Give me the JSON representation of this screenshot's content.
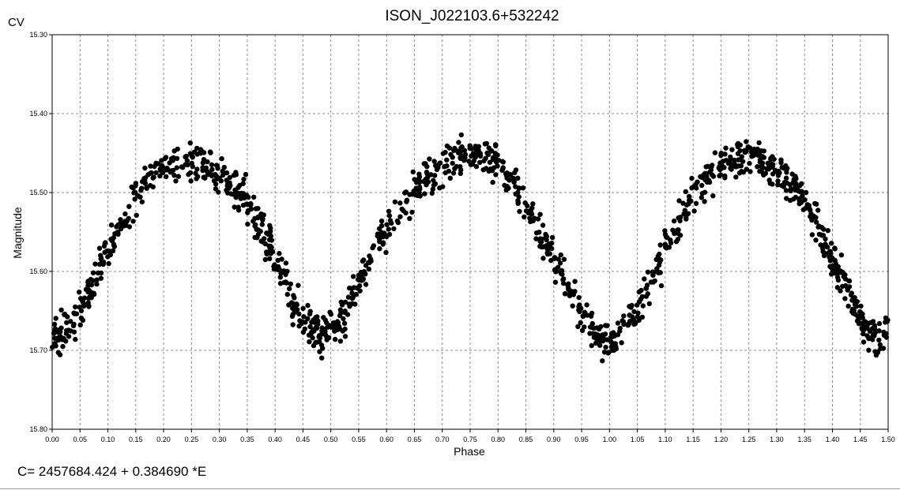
{
  "window": {
    "corner_label": "CV",
    "ephemeris_text": "C= 2457684.424 + 0.384690 *E"
  },
  "chart_data": {
    "type": "scatter",
    "title": "ISON_J022103.6+532242",
    "xlabel": "Phase",
    "ylabel": "Magnitude",
    "xlim": [
      0.0,
      1.5
    ],
    "ylim": [
      15.3,
      15.8
    ],
    "y_inverted": true,
    "grid": true,
    "grid_style": "dashed",
    "marker_color": "#000000",
    "x_ticks": [
      "0.00",
      "0.05",
      "0.10",
      "0.15",
      "0.20",
      "0.25",
      "0.30",
      "0.35",
      "0.40",
      "0.45",
      "0.50",
      "0.55",
      "0.60",
      "0.65",
      "0.70",
      "0.75",
      "0.80",
      "0.85",
      "0.90",
      "0.95",
      "1.00",
      "1.05",
      "1.10",
      "1.15",
      "1.20",
      "1.25",
      "1.30",
      "1.35",
      "1.40",
      "1.45",
      "1.50"
    ],
    "y_ticks": [
      "15.30",
      "15.40",
      "15.50",
      "15.60",
      "15.70",
      "15.80"
    ],
    "light_curve": {
      "period_phase_points": [
        [
          0.0,
          15.69
        ],
        [
          0.05,
          15.65
        ],
        [
          0.1,
          15.575
        ],
        [
          0.15,
          15.505
        ],
        [
          0.2,
          15.465
        ],
        [
          0.25,
          15.455
        ],
        [
          0.3,
          15.475
        ],
        [
          0.35,
          15.51
        ],
        [
          0.4,
          15.585
        ],
        [
          0.45,
          15.66
        ],
        [
          0.48,
          15.685
        ],
        [
          0.52,
          15.66
        ],
        [
          0.55,
          15.615
        ],
        [
          0.6,
          15.545
        ],
        [
          0.65,
          15.495
        ],
        [
          0.7,
          15.465
        ],
        [
          0.75,
          15.45
        ],
        [
          0.8,
          15.46
        ],
        [
          0.85,
          15.515
        ],
        [
          0.9,
          15.585
        ],
        [
          0.95,
          15.655
        ],
        [
          1.0,
          15.695
        ]
      ],
      "scatter_mag": 0.012,
      "points_per_unit_phase": 900
    }
  }
}
